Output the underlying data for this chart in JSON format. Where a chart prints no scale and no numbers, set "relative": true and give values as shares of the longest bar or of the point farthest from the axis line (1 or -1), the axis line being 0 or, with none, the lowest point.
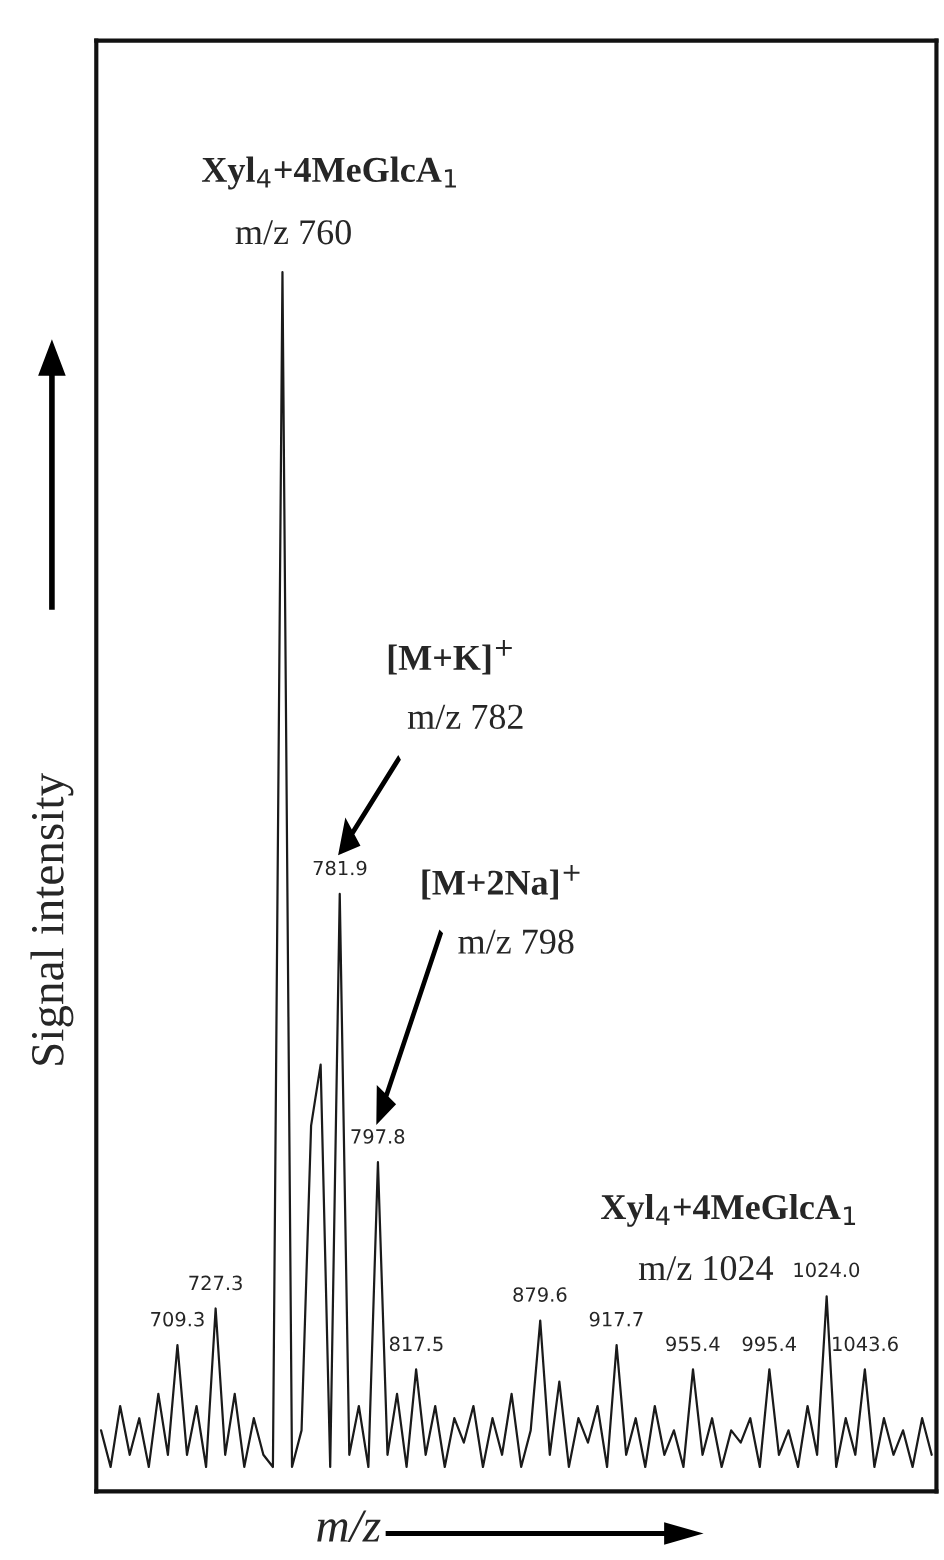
{
  "chart_data": {
    "type": "line",
    "relative": true,
    "xlabel": "m/z",
    "ylabel": "Signal intensity",
    "color": "#1a1a1a",
    "categories": [
      null,
      null,
      null,
      null,
      null,
      null,
      null,
      null,
      null,
      null,
      null,
      null,
      null,
      null,
      null,
      null,
      null,
      null,
      null,
      null,
      null,
      null,
      null,
      null,
      null,
      null,
      null,
      null,
      null,
      null,
      null,
      null,
      null,
      null,
      null,
      null,
      null,
      null,
      null,
      null,
      null,
      null,
      null,
      null,
      null,
      null,
      null,
      null,
      null,
      null,
      null,
      null,
      null,
      null,
      null,
      null,
      null,
      null,
      null,
      null,
      null,
      null,
      null,
      null,
      null,
      null,
      null,
      null,
      null,
      null,
      null,
      null,
      null,
      null,
      null,
      null,
      null,
      null,
      null,
      null,
      null,
      null,
      null,
      null,
      null,
      null,
      null,
      null
    ],
    "values": [
      0.05,
      0.02,
      0.07,
      0.03,
      0.06,
      0.02,
      0.08,
      0.03,
      0.12,
      0.03,
      0.07,
      0.02,
      0.15,
      0.03,
      0.08,
      0.02,
      0.06,
      0.03,
      0.02,
      1.0,
      0.02,
      0.05,
      0.3,
      0.35,
      0.02,
      0.49,
      0.03,
      0.07,
      0.02,
      0.27,
      0.03,
      0.08,
      0.02,
      0.1,
      0.03,
      0.07,
      0.02,
      0.06,
      0.04,
      0.07,
      0.02,
      0.06,
      0.03,
      0.08,
      0.02,
      0.05,
      0.14,
      0.03,
      0.09,
      0.02,
      0.06,
      0.04,
      0.07,
      0.02,
      0.12,
      0.03,
      0.06,
      0.02,
      0.07,
      0.03,
      0.05,
      0.02,
      0.1,
      0.03,
      0.06,
      0.02,
      0.05,
      0.04,
      0.06,
      0.02,
      0.1,
      0.03,
      0.05,
      0.02,
      0.07,
      0.03,
      0.16,
      0.02,
      0.06,
      0.03,
      0.1,
      0.02,
      0.06,
      0.03,
      0.05,
      0.02,
      0.06,
      0.03
    ],
    "annotations": [
      "Xyl$_{4}$+4MeGlcA$_{1}$",
      "m/z 760",
      "[M+K]$^{+}$",
      "m/z 782",
      "[M+2Na]$^{+}$",
      "m/z 798",
      "Xyl$_{4}$+4MeGlcA$_{1}$",
      "m/z 1024",
      "709.3",
      "727.3",
      "781.9",
      "797.8",
      "817.5",
      "879.6",
      "917.7",
      "955.4",
      "995.4",
      "1024.0",
      "1043.6"
    ]
  }
}
